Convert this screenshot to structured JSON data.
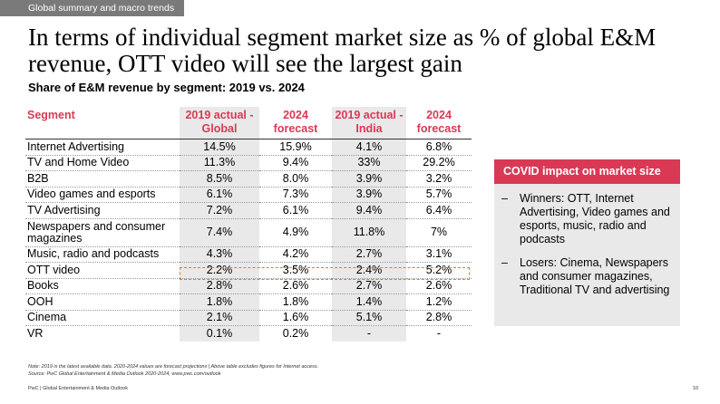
{
  "header": {
    "tag": "Global summary and macro trends",
    "title": "In terms of individual segment market size as % of global E&M revenue, OTT video will see the largest gain",
    "subtitle": "Share of E&M revenue by segment: 2019 vs. 2024"
  },
  "table": {
    "columns": [
      "Segment",
      "2019 actual - Global",
      "2024 forecast",
      "2019 actual - India",
      "2024 forecast"
    ],
    "rows": [
      [
        "Internet Advertising",
        "14.5%",
        "15.9%",
        "4.1%",
        "6.8%"
      ],
      [
        "TV and Home Video",
        "11.3%",
        "9.4%",
        "33%",
        "29.2%"
      ],
      [
        "B2B",
        "8.5%",
        "8.0%",
        "3.9%",
        "3.2%"
      ],
      [
        "Video games and esports",
        "6.1%",
        "7.3%",
        "3.9%",
        "5.7%"
      ],
      [
        "TV Advertising",
        "7.2%",
        "6.1%",
        "9.4%",
        "6.4%"
      ],
      [
        "Newspapers and consumer magazines",
        "7.4%",
        "4.9%",
        "11.8%",
        "7%"
      ],
      [
        "Music, radio and podcasts",
        "4.3%",
        "4.2%",
        "2.7%",
        "3.1%"
      ],
      [
        "OTT video",
        "2.2%",
        "3.5%",
        "2.4%",
        "5.2%"
      ],
      [
        "Books",
        "2.8%",
        "2.6%",
        "2.7%",
        "2.6%"
      ],
      [
        "OOH",
        "1.8%",
        "1.8%",
        "1.4%",
        "1.2%"
      ],
      [
        "Cinema",
        "2.1%",
        "1.6%",
        "5.1%",
        "2.8%"
      ],
      [
        "VR",
        "0.1%",
        "0.2%",
        "-",
        "-"
      ]
    ]
  },
  "covid": {
    "title": "COVID impact on market size",
    "items": [
      "Winners: OTT, Internet Advertising, Video games and esports, music, radio and podcasts",
      "Losers: Cinema, Newspapers and consumer magazines, Traditional TV and advertising"
    ],
    "bullet": "–"
  },
  "footer": {
    "note_line1": "Note: 2019 is the latest available data. 2020-2024 values are forecast projections | Above table excludes figures for Internet access.",
    "note_line2": "Source: PwC Global Entertainment & Media Outlook 2020-2024, www.pwc.com/outlook",
    "source": "PwC | Global Entertainment & Media Outlook",
    "page_number": "10"
  },
  "colors": {
    "accent": "#d93954",
    "shade": "#e9e9e9",
    "tag_bg": "#7a7a7a",
    "highlight": "#e27833"
  }
}
